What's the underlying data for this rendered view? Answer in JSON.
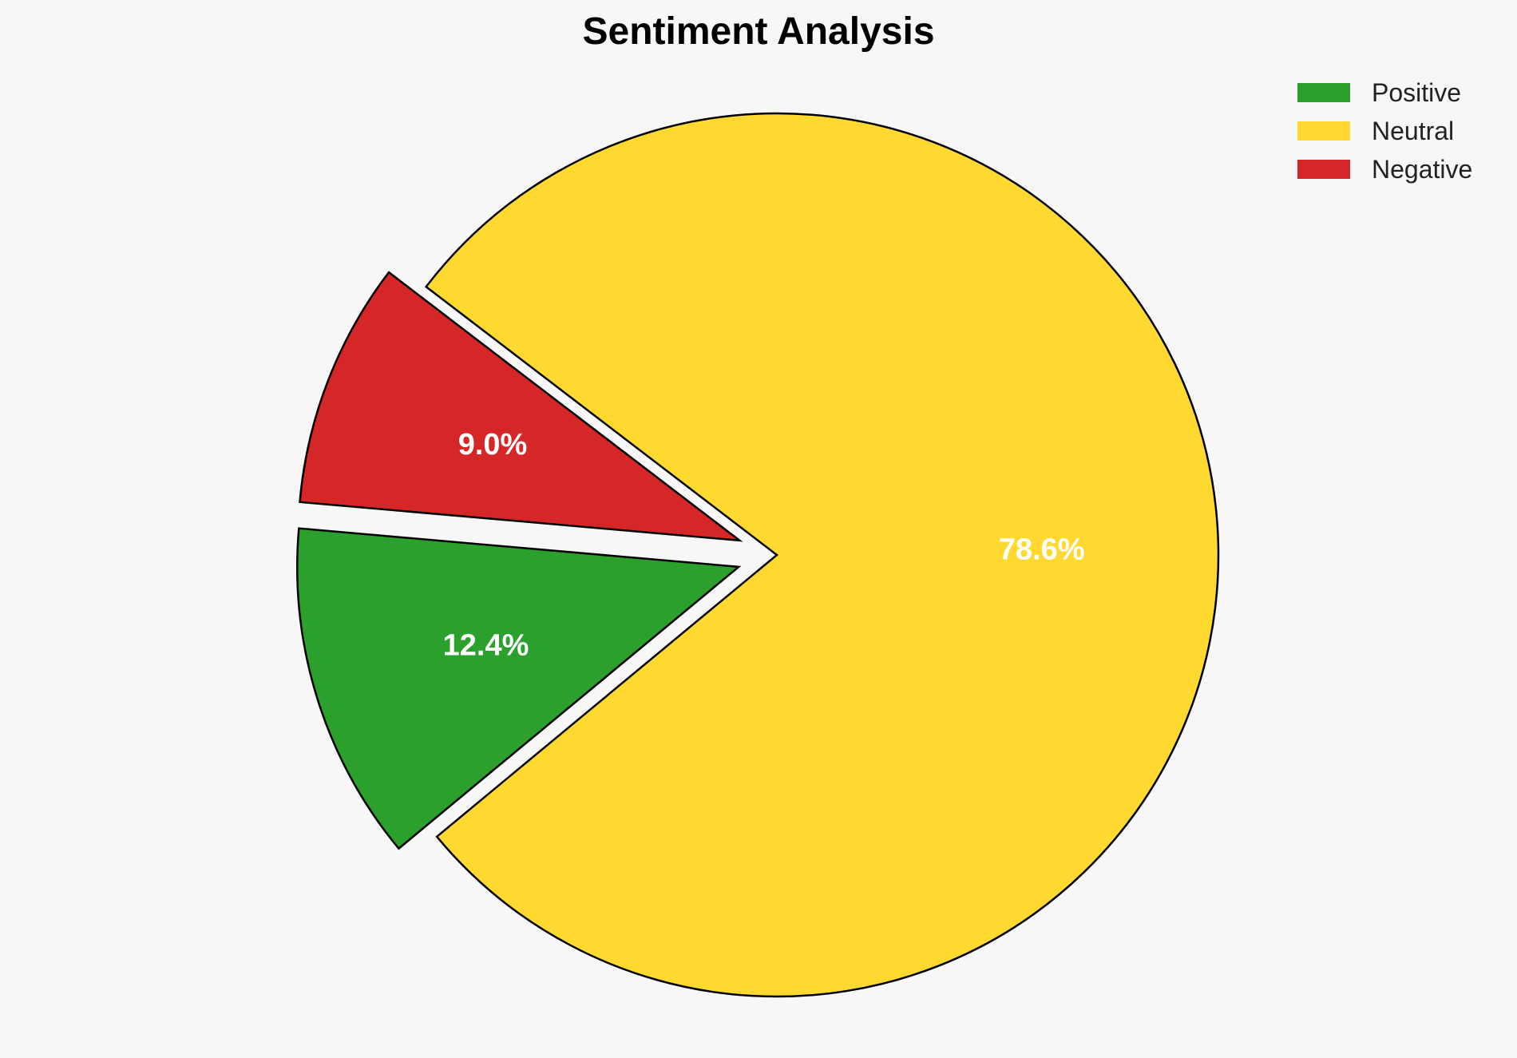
{
  "chart_data": {
    "type": "pie",
    "title": "Sentiment Analysis",
    "categories": [
      "Positive",
      "Neutral",
      "Negative"
    ],
    "values": [
      12.4,
      78.6,
      9.0
    ],
    "labels": [
      "12.4%",
      "78.6%",
      "9.0%"
    ],
    "colors": [
      "#2ca02c",
      "#ffd92f",
      "#d62728"
    ],
    "exploded": [
      true,
      false,
      true
    ],
    "legend_position": "top-right"
  }
}
